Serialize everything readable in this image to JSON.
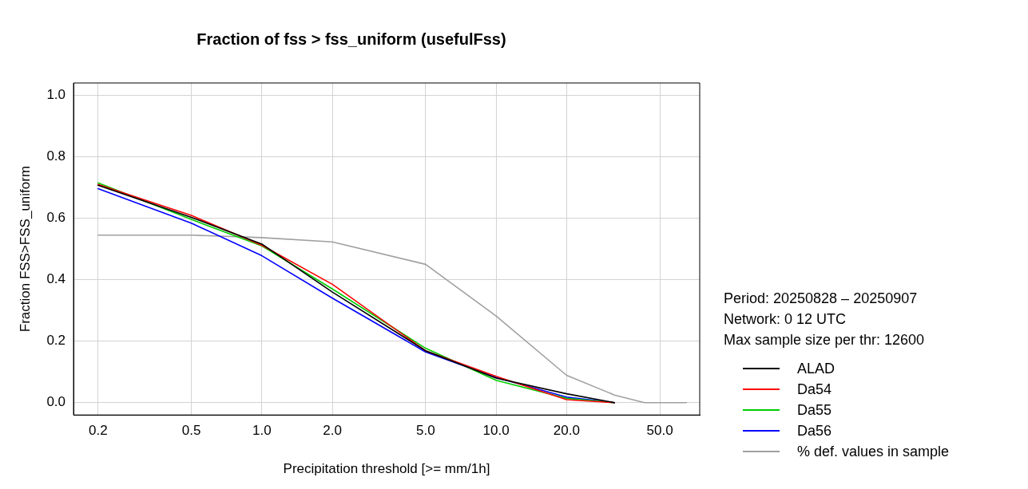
{
  "chart_data": {
    "type": "line",
    "title": "Fraction of fss > fss_uniform (usefulFss)",
    "xlabel": "Precipitation threshold [>= mm/1h]",
    "ylabel": "Fraction FSS>FSS_uniform",
    "x": [
      0.2,
      0.5,
      1,
      2,
      5,
      10,
      20,
      32
    ],
    "series": [
      {
        "name": "ALAD",
        "color": "#000000",
        "values": [
          0.707,
          0.603,
          0.516,
          0.36,
          0.169,
          0.08,
          0.029,
          0
        ]
      },
      {
        "name": "Da54",
        "color": "#ff0000",
        "values": [
          0.71,
          0.609,
          0.512,
          0.385,
          0.169,
          0.086,
          0.01,
          0
        ]
      },
      {
        "name": "Da55",
        "color": "#00cd00",
        "values": [
          0.715,
          0.596,
          0.51,
          0.37,
          0.177,
          0.073,
          0.014,
          0
        ]
      },
      {
        "name": "Da56",
        "color": "#0000ff",
        "values": [
          0.696,
          0.584,
          0.478,
          0.34,
          0.165,
          0.082,
          0.018,
          0
        ]
      },
      {
        "name": "% def. values in sample",
        "color": "#a0a0a0",
        "x": [
          0.2,
          0.5,
          1,
          2,
          5,
          10,
          20,
          32,
          43,
          65
        ],
        "values": [
          0.545,
          0.545,
          0.537,
          0.523,
          0.45,
          0.282,
          0.089,
          0.025,
          0,
          0
        ]
      }
    ],
    "log": "x",
    "xlim": [
      0.157,
      74
    ],
    "ylim": [
      -0.04,
      1.04
    ],
    "xticks": [
      0.2,
      0.5,
      {
        "value": 1,
        "label": "1.0"
      },
      {
        "value": 2,
        "label": "2.0"
      },
      {
        "value": 5,
        "label": "5.0"
      },
      {
        "value": 10,
        "label": "10.0"
      },
      {
        "value": 20,
        "label": "20.0"
      },
      {
        "value": 50,
        "label": "50.0"
      }
    ],
    "yticks": [
      {
        "value": 0,
        "label": "0.0"
      },
      0.2,
      0.4,
      0.6,
      0.8,
      {
        "value": 1,
        "label": "1.0"
      }
    ],
    "grid": true,
    "legend": "right",
    "marker": "none",
    "line_style": "solid",
    "annotations": [
      "Period:  20250828  –  20250907",
      "Network:  0 12  UTC",
      "Max sample size per thr:  12600"
    ]
  }
}
